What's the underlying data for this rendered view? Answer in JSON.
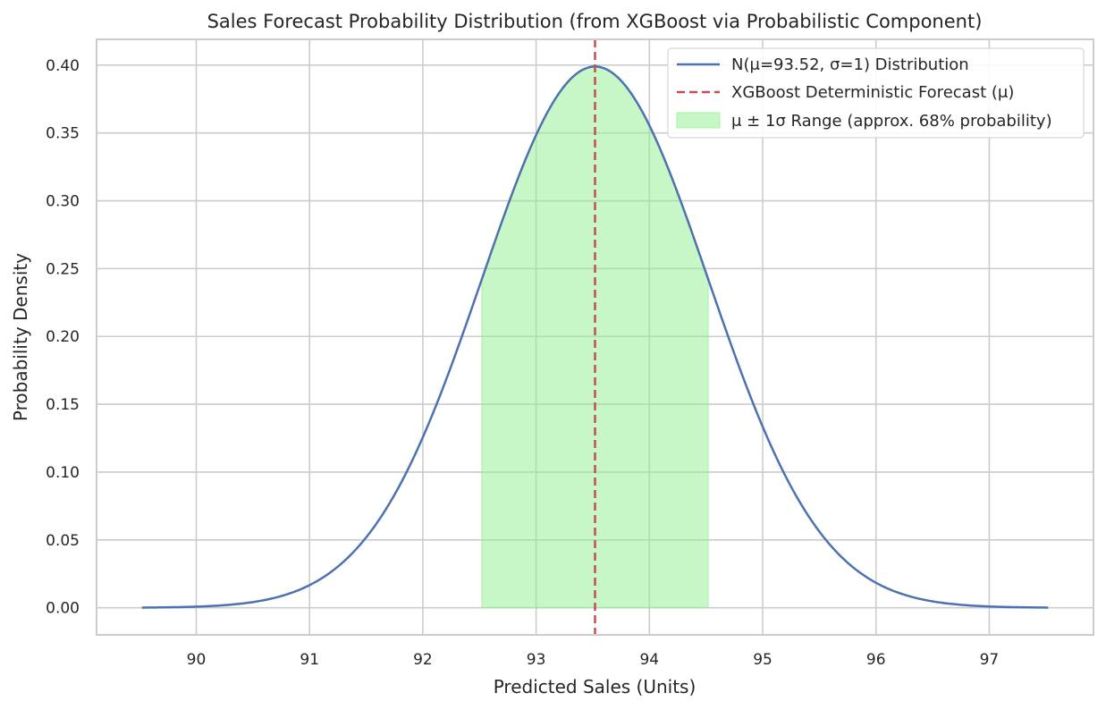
{
  "chart_data": {
    "type": "line",
    "title": "Sales Forecast Probability Distribution (from XGBoost via Probabilistic Component)",
    "xlabel": "Predicted Sales (Units)",
    "ylabel": "Probability Density",
    "xlim": [
      89.12,
      97.92
    ],
    "ylim": [
      -0.02,
      0.419
    ],
    "xticks": [
      90,
      91,
      92,
      93,
      94,
      95,
      96,
      97
    ],
    "xtick_labels": [
      "90",
      "91",
      "92",
      "93",
      "94",
      "95",
      "96",
      "97"
    ],
    "yticks": [
      0.0,
      0.05,
      0.1,
      0.15,
      0.2,
      0.25,
      0.3,
      0.35,
      0.4
    ],
    "ytick_labels": [
      "0.00",
      "0.05",
      "0.10",
      "0.15",
      "0.20",
      "0.25",
      "0.30",
      "0.35",
      "0.40"
    ],
    "grid": true,
    "legend_position": "top-right",
    "distribution": {
      "mu": 93.52,
      "sigma": 1,
      "x_start": 89.52,
      "x_end": 97.52
    },
    "series": [
      {
        "name": "N(μ=93.52, σ=1) Distribution",
        "kind": "line",
        "color": "#4c72b0"
      },
      {
        "name": "XGBoost Deterministic Forecast (μ)",
        "kind": "vline",
        "x": 93.52,
        "color": "#c44e52"
      },
      {
        "name": "μ ± 1σ Range (approx. 68% probability)",
        "kind": "fill",
        "x_from": 92.52,
        "x_to": 94.52,
        "color": "#90ee90"
      }
    ]
  }
}
